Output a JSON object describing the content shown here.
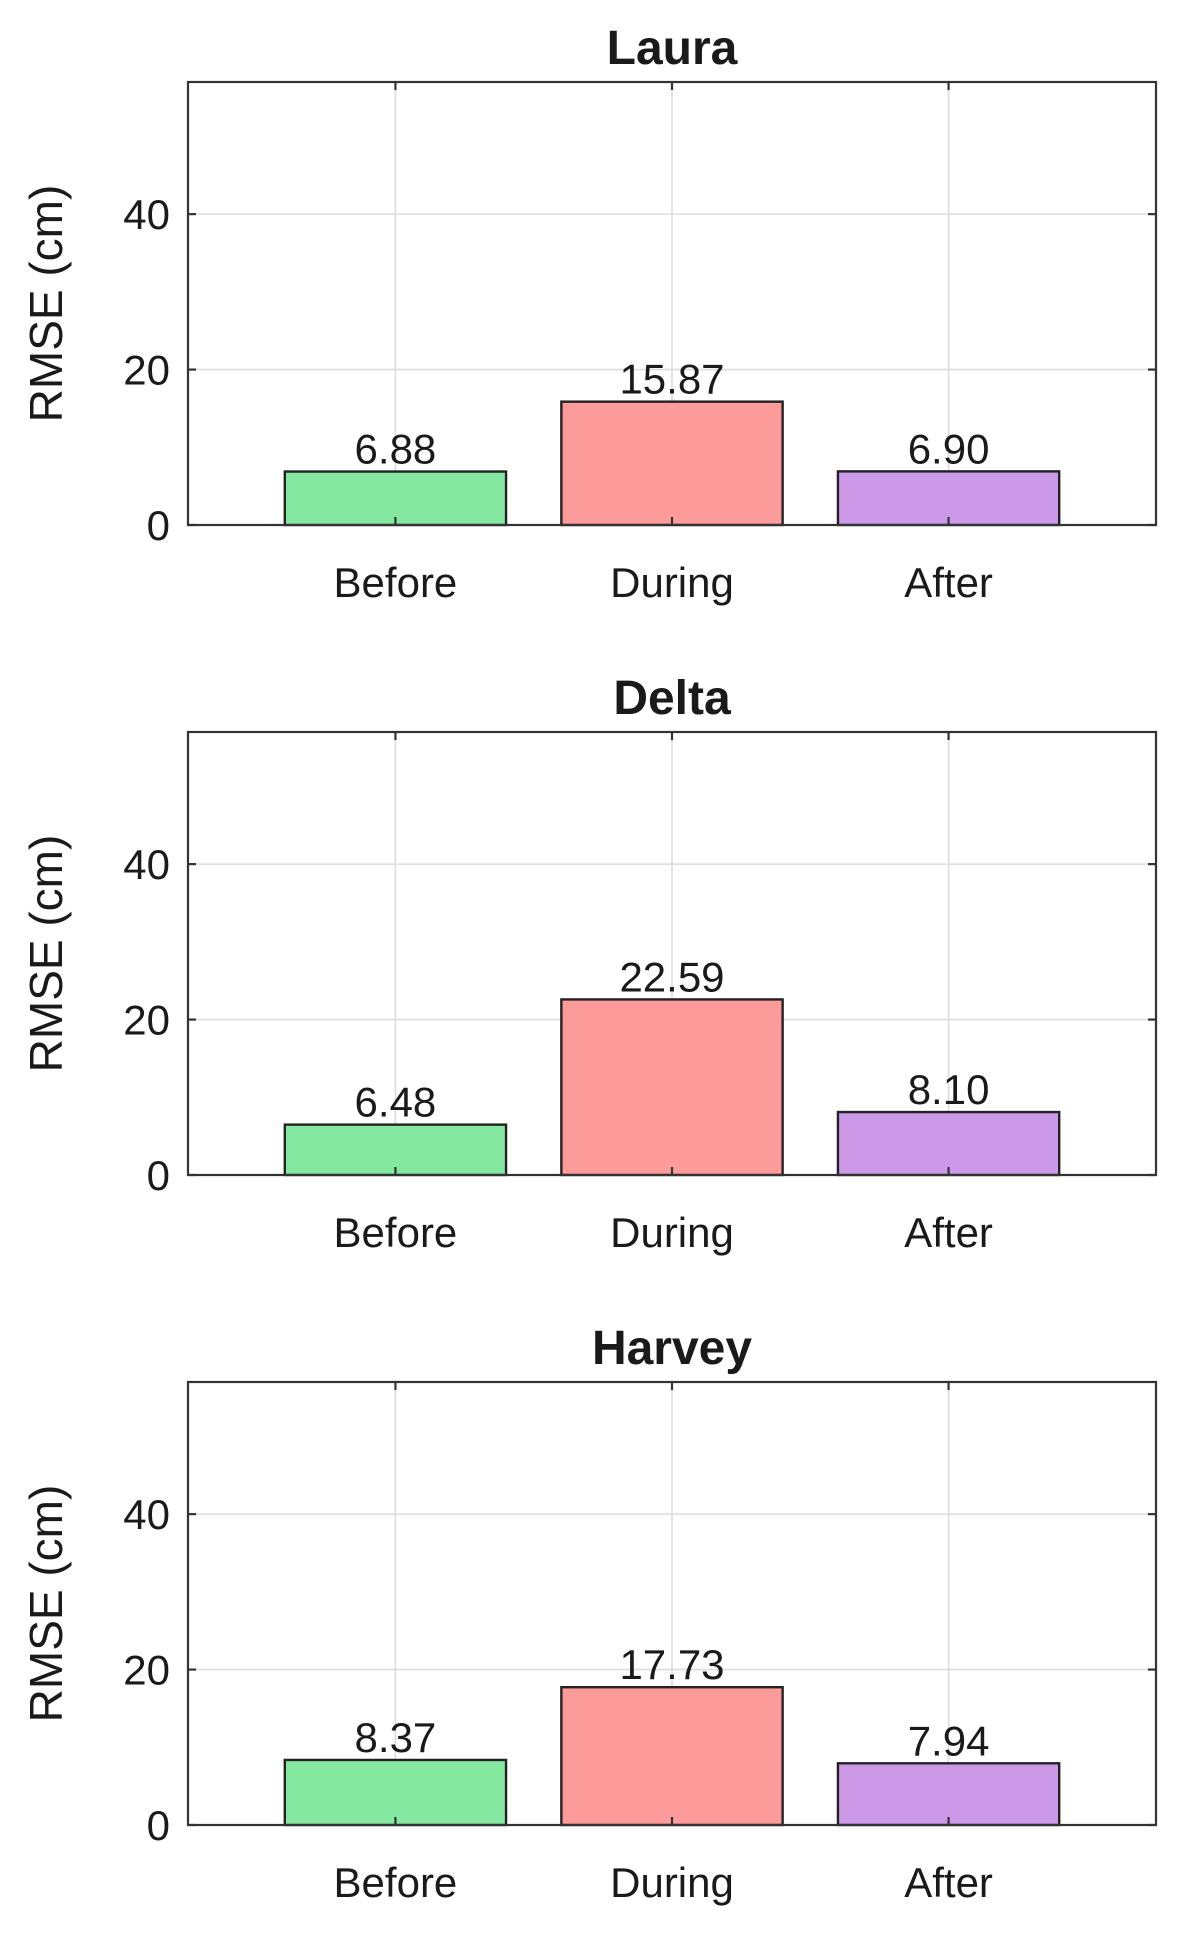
{
  "chart_data": [
    {
      "type": "bar",
      "title": "Laura",
      "ylabel": "RMSE (cm)",
      "xlabel": "",
      "categories": [
        "Before",
        "During",
        "After"
      ],
      "values": [
        6.88,
        15.87,
        6.9
      ],
      "data_labels": [
        "6.88",
        "15.87",
        "6.90"
      ],
      "colors": [
        "#84e8a1",
        "#fd9a9a",
        "#cc99e9"
      ],
      "ylim": [
        0,
        57
      ],
      "yticks": [
        0,
        20,
        40
      ],
      "xlim": [
        0.25,
        3.75
      ],
      "grid": true,
      "legend": "none"
    },
    {
      "type": "bar",
      "title": "Delta",
      "ylabel": "RMSE (cm)",
      "xlabel": "",
      "categories": [
        "Before",
        "During",
        "After"
      ],
      "values": [
        6.48,
        22.59,
        8.1
      ],
      "data_labels": [
        "6.48",
        "22.59",
        "8.10"
      ],
      "colors": [
        "#84e8a1",
        "#fd9a9a",
        "#cc99e9"
      ],
      "ylim": [
        0,
        57
      ],
      "yticks": [
        0,
        20,
        40
      ],
      "xlim": [
        0.25,
        3.75
      ],
      "grid": true,
      "legend": "none"
    },
    {
      "type": "bar",
      "title": "Harvey",
      "ylabel": "RMSE (cm)",
      "xlabel": "",
      "categories": [
        "Before",
        "During",
        "After"
      ],
      "values": [
        8.37,
        17.73,
        7.94
      ],
      "data_labels": [
        "8.37",
        "17.73",
        "7.94"
      ],
      "colors": [
        "#84e8a1",
        "#fd9a9a",
        "#cc99e9"
      ],
      "ylim": [
        0,
        57
      ],
      "yticks": [
        0,
        20,
        40
      ],
      "xlim": [
        0.25,
        3.75
      ],
      "grid": true,
      "legend": "none"
    }
  ]
}
